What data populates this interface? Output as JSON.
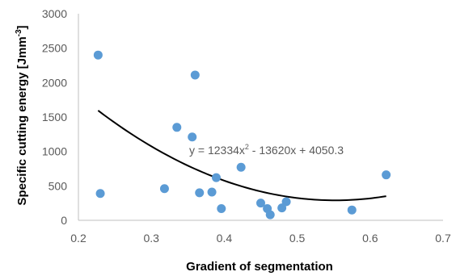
{
  "chart_data": {
    "type": "scatter",
    "title": "",
    "xlabel": "Gradient of segmentation",
    "ylabel": "Specific cutting energy [Jmm",
    "ylabel_sup": "-3",
    "ylabel_end": "]",
    "xlim": [
      0.2,
      0.7
    ],
    "ylim": [
      0,
      3000
    ],
    "x_ticks": [
      "0.2",
      "0.3",
      "0.4",
      "0.5",
      "0.6",
      "0.7"
    ],
    "y_ticks": [
      "0",
      "500",
      "1000",
      "1500",
      "2000",
      "2500",
      "3000"
    ],
    "grid": false,
    "legend": "none",
    "marker_color": "#5B9BD5",
    "trendline_color": "#000000",
    "series": [
      {
        "points": [
          {
            "x": 0.227,
            "y": 2400
          },
          {
            "x": 0.23,
            "y": 390
          },
          {
            "x": 0.318,
            "y": 460
          },
          {
            "x": 0.335,
            "y": 1350
          },
          {
            "x": 0.356,
            "y": 1210
          },
          {
            "x": 0.36,
            "y": 2110
          },
          {
            "x": 0.366,
            "y": 400
          },
          {
            "x": 0.383,
            "y": 410
          },
          {
            "x": 0.389,
            "y": 620
          },
          {
            "x": 0.396,
            "y": 170
          },
          {
            "x": 0.423,
            "y": 770
          },
          {
            "x": 0.45,
            "y": 250
          },
          {
            "x": 0.459,
            "y": 170
          },
          {
            "x": 0.463,
            "y": 80
          },
          {
            "x": 0.479,
            "y": 180
          },
          {
            "x": 0.485,
            "y": 270
          },
          {
            "x": 0.575,
            "y": 150
          },
          {
            "x": 0.622,
            "y": 660
          }
        ]
      }
    ],
    "trendline": {
      "type": "polynomial",
      "coefficients": [
        12334,
        -13620,
        4050.3
      ],
      "x_range": [
        0.227,
        0.622
      ],
      "equation_prefix": "y = 12334x",
      "equation_sup": "2",
      "equation_suffix": " - 13620x + 4050.3"
    }
  }
}
